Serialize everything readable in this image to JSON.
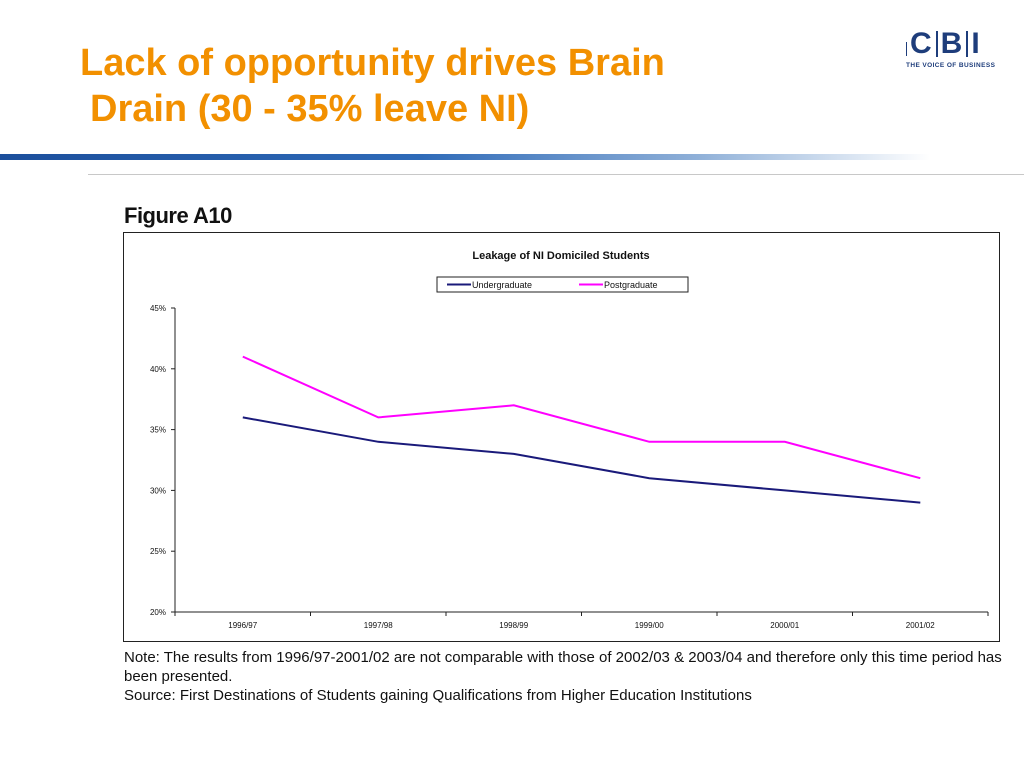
{
  "slide": {
    "title_line1": "Lack of opportunity drives Brain",
    "title_line2": "Drain (30 - 35% leave NI)",
    "figure_label": "Figure A10",
    "note": "Note: The results from 1996/97-2001/02 are not comparable with those of 2002/03 & 2003/04 and therefore only this time period has been presented.",
    "source": "Source: First Destinations of Students gaining Qualifications from Higher Education Institutions"
  },
  "logo": {
    "letters": [
      "C",
      "B",
      "I"
    ],
    "tagline": "THE VOICE OF BUSINESS",
    "color": "#1e3d7b"
  },
  "colors": {
    "title": "#f29000",
    "rule": "#1c4f9c",
    "undergraduate": "#1a1a7a",
    "postgraduate": "#ff00ff"
  },
  "chart_data": {
    "type": "line",
    "title": "Leakage of NI Domiciled Students",
    "categories": [
      "1996/97",
      "1997/98",
      "1998/99",
      "1999/00",
      "2000/01",
      "2001/02"
    ],
    "series": [
      {
        "name": "Undergraduate",
        "values": [
          36,
          34,
          33,
          31,
          30,
          29
        ],
        "color": "#1a1a7a"
      },
      {
        "name": "Postgraduate",
        "values": [
          41,
          36,
          37,
          34,
          34,
          31
        ],
        "color": "#ff00ff"
      }
    ],
    "y_ticks": [
      "20%",
      "25%",
      "30%",
      "35%",
      "40%",
      "45%"
    ],
    "ylim": [
      20,
      45
    ],
    "y_unit": "%",
    "xlabel": "",
    "ylabel": "",
    "grid": false,
    "legend_position": "top"
  }
}
